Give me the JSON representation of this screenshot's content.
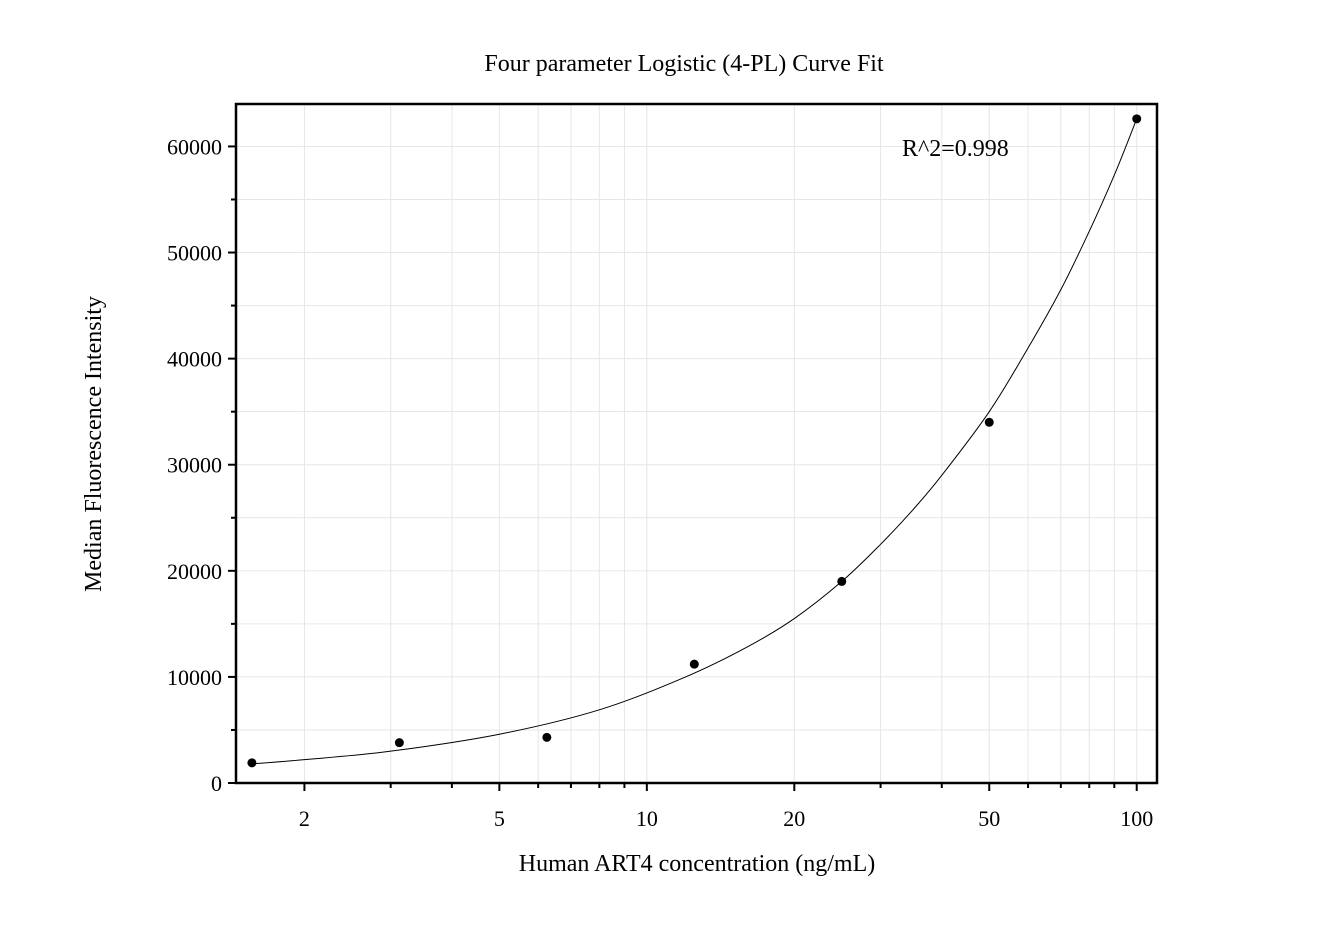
{
  "chart_data": {
    "type": "scatter",
    "title": "Four parameter Logistic (4-PL) Curve Fit",
    "xlabel": "Human ART4 concentration (ng/mL)",
    "ylabel": "Median Fluorescence Intensity",
    "x_scale": "log",
    "xlim": [
      1.45,
      110
    ],
    "ylim": [
      0,
      64000
    ],
    "x_ticks": [
      2,
      5,
      10,
      20,
      50,
      100
    ],
    "x_tick_labels": [
      "2",
      "5",
      "10",
      "20",
      "50",
      "100"
    ],
    "y_ticks": [
      0,
      10000,
      20000,
      30000,
      40000,
      50000,
      60000
    ],
    "y_tick_labels": [
      "0",
      "10000",
      "20000",
      "30000",
      "40000",
      "50000",
      "60000"
    ],
    "grid": true,
    "annotation": "R^2=0.998",
    "series": [
      {
        "x": [
          1.5625,
          3.125,
          6.25,
          12.5,
          25,
          50,
          100
        ],
        "y": [
          1900,
          3800,
          4300,
          11200,
          19000,
          34000,
          62600
        ]
      }
    ],
    "fit_curve": {
      "x": [
        1.5625,
        2,
        3,
        5,
        8,
        12,
        16,
        20,
        25,
        30,
        35,
        40,
        50,
        60,
        70,
        80,
        90,
        100
      ],
      "y": [
        1800,
        2200,
        3000,
        4600,
        6900,
        10000,
        12800,
        15500,
        19000,
        22500,
        25800,
        29000,
        35000,
        41000,
        46500,
        52000,
        57300,
        62600
      ]
    },
    "colors": {
      "points": "#000000",
      "curve": "#000000",
      "grid": "#e6e6e6"
    }
  }
}
